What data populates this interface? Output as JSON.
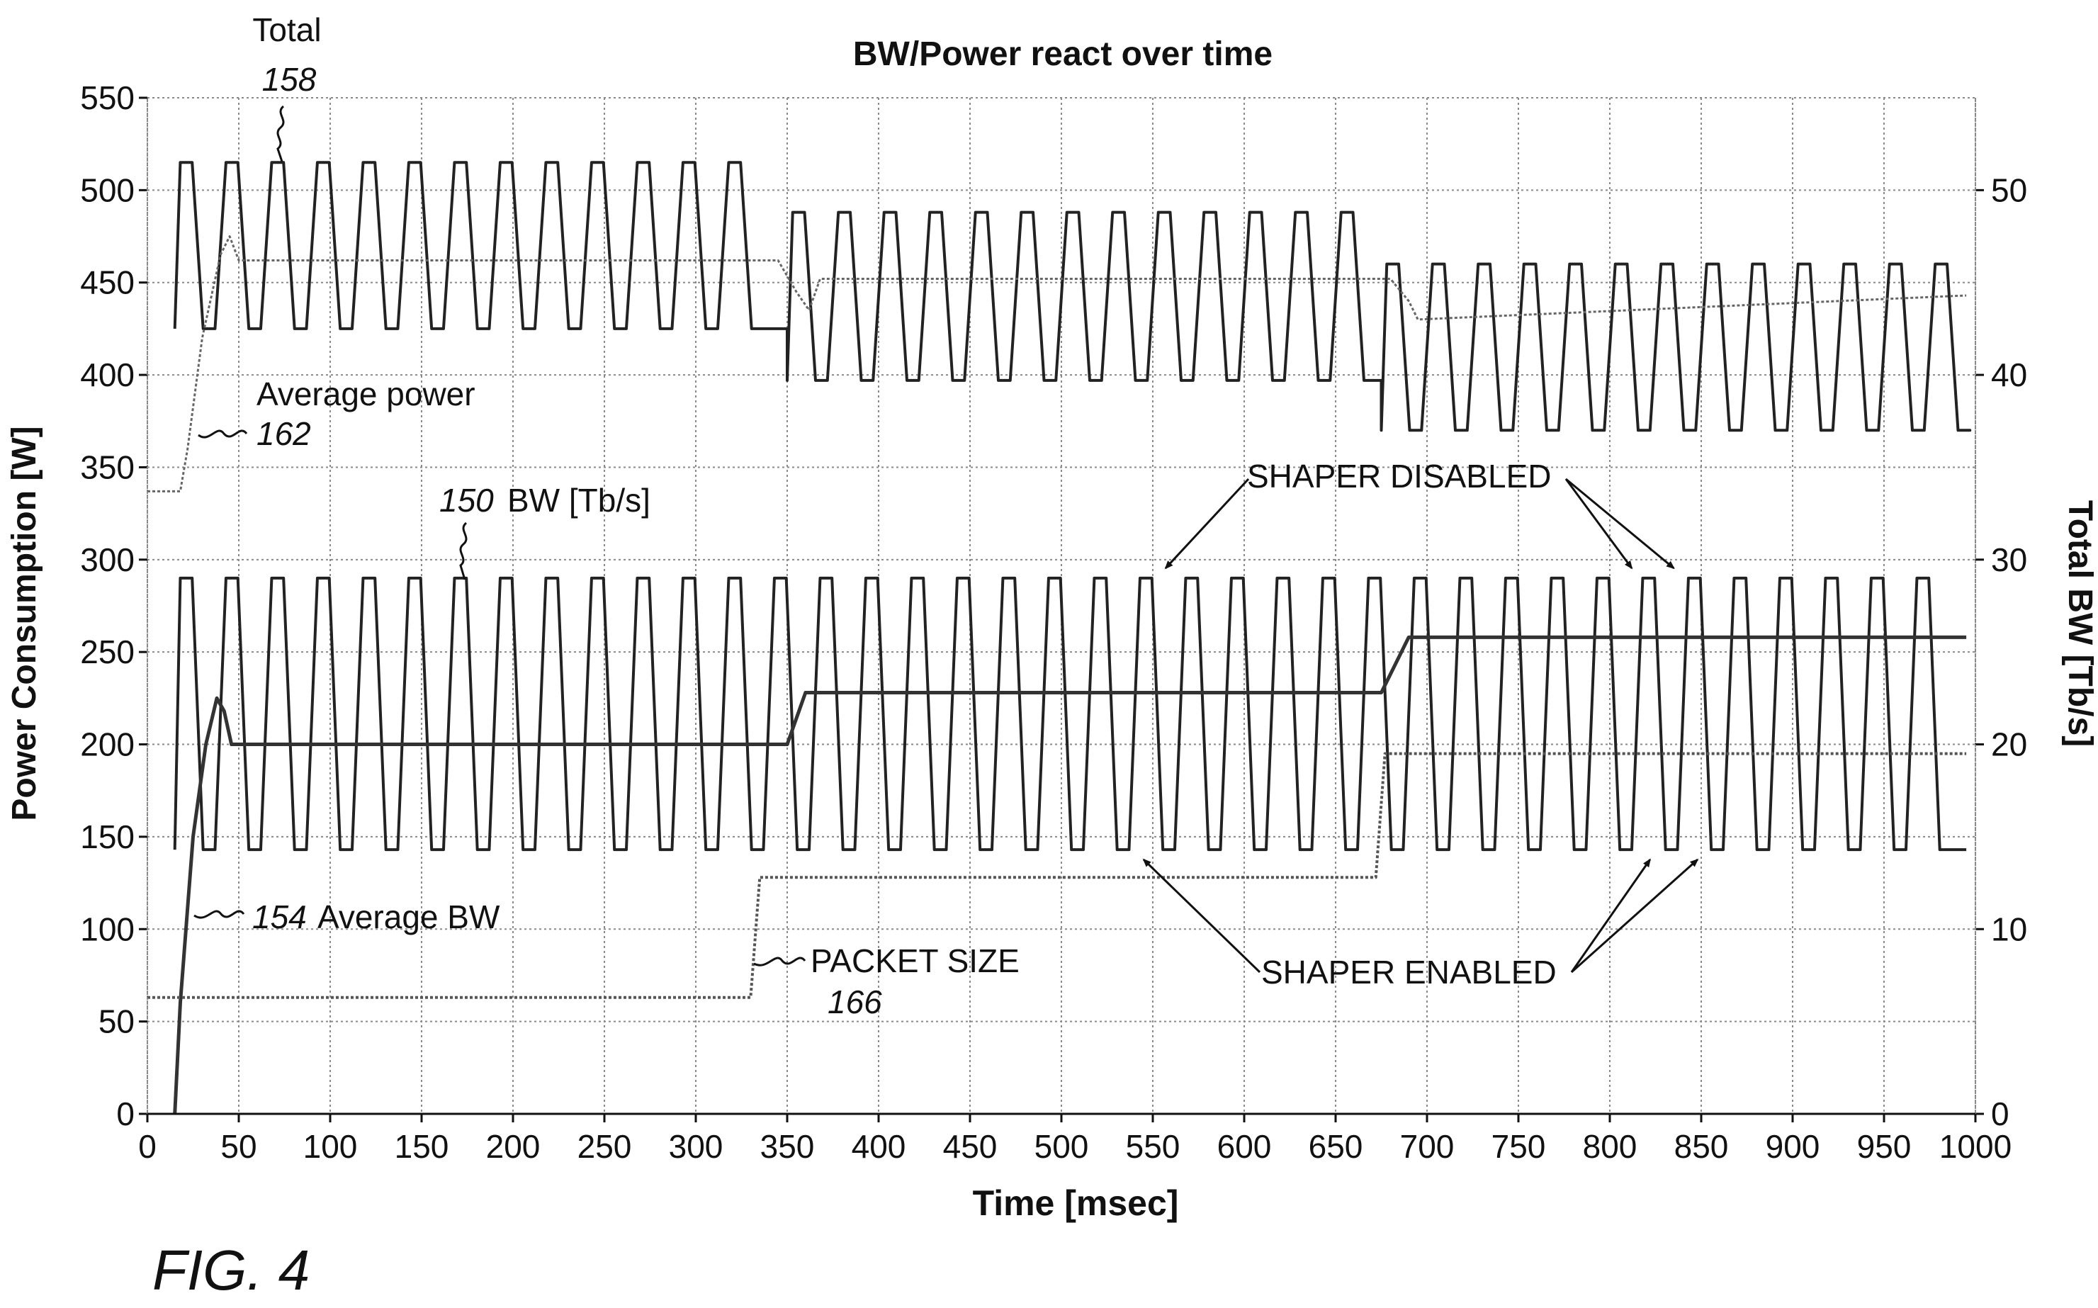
{
  "figure_label": "FIG. 4",
  "chart_data": {
    "type": "line",
    "title": "BW/Power react over time",
    "xlabel": "Time [msec]",
    "ylabel": "Power Consumption [W]",
    "y2label": "Total BW [Tb/s]",
    "xlim": [
      0,
      1000
    ],
    "ylim": [
      0,
      550
    ],
    "y2lim": [
      0,
      55
    ],
    "xticks": [
      0,
      50,
      100,
      150,
      200,
      250,
      300,
      350,
      400,
      450,
      500,
      550,
      600,
      650,
      700,
      750,
      800,
      850,
      900,
      950,
      1000
    ],
    "yticks": [
      0,
      50,
      100,
      150,
      200,
      250,
      300,
      350,
      400,
      450,
      500,
      550
    ],
    "y2ticks": [
      0,
      10,
      20,
      30,
      40,
      50
    ],
    "grid": true,
    "series": [
      {
        "name": "Total",
        "ref": "158",
        "axis": "left",
        "style": "oscillating",
        "segments": [
          {
            "x_start": 15,
            "x_end": 350,
            "high": 515,
            "low": 425,
            "period": 25
          },
          {
            "x_start": 350,
            "x_end": 675,
            "high": 488,
            "low": 397,
            "period": 25
          },
          {
            "x_start": 675,
            "x_end": 995,
            "high": 460,
            "low": 370,
            "period": 25
          }
        ]
      },
      {
        "name": "Average power",
        "ref": "162",
        "axis": "left",
        "style": "step",
        "x": [
          0,
          18,
          22,
          30,
          40,
          45,
          50,
          345,
          355,
          362,
          368,
          680,
          690,
          695,
          995
        ],
        "y": [
          337,
          337,
          360,
          420,
          465,
          475,
          462,
          462,
          445,
          435,
          452,
          452,
          440,
          430,
          443
        ]
      },
      {
        "name": "BW [Tb/s]",
        "ref": "150",
        "axis": "left",
        "style": "oscillating",
        "segments": [
          {
            "x_start": 15,
            "x_end": 995,
            "high": 290,
            "low": 143,
            "period": 25
          }
        ]
      },
      {
        "name": "Average BW",
        "ref": "154",
        "axis": "left",
        "style": "step",
        "x": [
          15,
          18,
          25,
          32,
          38,
          42,
          46,
          350,
          360,
          675,
          690,
          995
        ],
        "y": [
          0,
          60,
          150,
          200,
          225,
          218,
          200,
          200,
          228,
          228,
          258,
          258
        ]
      },
      {
        "name": "PACKET SIZE",
        "ref": "166",
        "axis": "left",
        "style": "step",
        "x": [
          0,
          330,
          335,
          672,
          677,
          995
        ],
        "y": [
          63,
          63,
          128,
          128,
          195,
          195
        ]
      }
    ],
    "annotations": [
      {
        "text": "Total",
        "ref": "158"
      },
      {
        "text": "Average power",
        "ref": "162"
      },
      {
        "text": "BW [Tb/s]",
        "ref": "150"
      },
      {
        "text": "Average BW",
        "ref": "154"
      },
      {
        "text": "PACKET SIZE",
        "ref": "166"
      },
      {
        "text": "SHAPER DISABLED",
        "points_to": [
          [
            557,
            290
          ],
          [
            812,
            290
          ],
          [
            835,
            290
          ]
        ]
      },
      {
        "text": "SHAPER ENABLED",
        "points_to": [
          [
            545,
            143
          ],
          [
            822,
            143
          ],
          [
            848,
            143
          ]
        ]
      }
    ]
  }
}
